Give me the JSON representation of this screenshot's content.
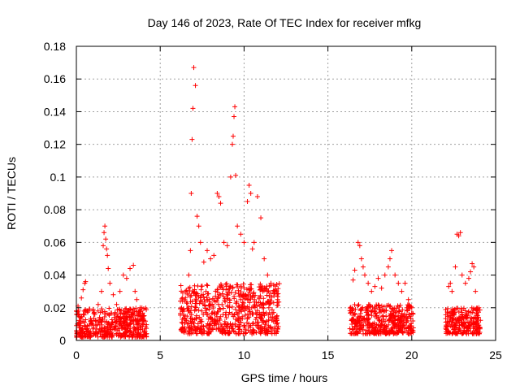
{
  "chart_data": {
    "type": "scatter",
    "title": "Day 146 of 2023, Rate Of TEC Index for receiver mfkg",
    "xlabel": "GPS time / hours",
    "ylabel": "ROTI / TECUs",
    "xlim": [
      0,
      25
    ],
    "ylim": [
      0,
      0.18
    ],
    "x_ticks": [
      0,
      5,
      10,
      15,
      20,
      25
    ],
    "x_tick_labels": [
      "0",
      "5",
      "10",
      "15",
      "20",
      "25"
    ],
    "y_ticks": [
      0,
      0.02,
      0.04,
      0.06,
      0.08,
      0.1,
      0.12,
      0.14,
      0.16,
      0.18
    ],
    "y_tick_labels": [
      "0",
      "0.02",
      "0.04",
      "0.06",
      "0.08",
      "0.1",
      "0.12",
      "0.14",
      "0.16",
      "0.18"
    ],
    "grid": true,
    "marker": "+",
    "color": "#ff0000",
    "series": [
      {
        "x": [
          0.1,
          0.3,
          0.4,
          0.5,
          0.55,
          0.7,
          0.9,
          1.1,
          1.3,
          1.5,
          1.6,
          1.65,
          1.7,
          1.75,
          1.8,
          1.85,
          1.9,
          2.0,
          2.2,
          2.4,
          2.6,
          2.8,
          3.0,
          3.2,
          3.4,
          3.5,
          3.6,
          3.8,
          4.0,
          6.5,
          6.7,
          6.8,
          6.85,
          6.9,
          6.95,
          7.0,
          7.1,
          7.2,
          7.3,
          7.4,
          7.6,
          7.8,
          8.0,
          8.2,
          8.4,
          8.5,
          8.6,
          8.8,
          9.0,
          9.2,
          9.3,
          9.35,
          9.4,
          9.45,
          9.5,
          9.6,
          9.8,
          10.0,
          10.2,
          10.3,
          10.4,
          10.5,
          10.6,
          10.8,
          11.0,
          11.2,
          11.4,
          11.6,
          11.8,
          12.0,
          16.5,
          16.6,
          16.8,
          16.9,
          17.0,
          17.1,
          17.2,
          17.4,
          17.6,
          17.8,
          18.0,
          18.2,
          18.4,
          18.6,
          18.7,
          18.8,
          19.0,
          19.2,
          19.4,
          19.6,
          19.8,
          20.0,
          22.2,
          22.3,
          22.4,
          22.6,
          22.7,
          22.8,
          22.9,
          23.0,
          23.2,
          23.4,
          23.5,
          23.6,
          23.7,
          23.8,
          24.0
        ],
        "y": [
          0.021,
          0.026,
          0.031,
          0.035,
          0.036,
          0.018,
          0.012,
          0.016,
          0.022,
          0.03,
          0.058,
          0.066,
          0.07,
          0.062,
          0.056,
          0.052,
          0.044,
          0.035,
          0.028,
          0.022,
          0.03,
          0.04,
          0.038,
          0.044,
          0.046,
          0.03,
          0.025,
          0.02,
          0.015,
          0.03,
          0.04,
          0.055,
          0.09,
          0.123,
          0.142,
          0.167,
          0.156,
          0.076,
          0.07,
          0.06,
          0.048,
          0.055,
          0.05,
          0.052,
          0.09,
          0.088,
          0.084,
          0.06,
          0.058,
          0.1,
          0.12,
          0.125,
          0.137,
          0.143,
          0.101,
          0.07,
          0.065,
          0.06,
          0.085,
          0.095,
          0.09,
          0.056,
          0.06,
          0.088,
          0.075,
          0.05,
          0.04,
          0.035,
          0.03,
          0.025,
          0.037,
          0.043,
          0.06,
          0.058,
          0.05,
          0.045,
          0.04,
          0.035,
          0.03,
          0.033,
          0.038,
          0.032,
          0.04,
          0.045,
          0.05,
          0.055,
          0.04,
          0.035,
          0.03,
          0.035,
          0.025,
          0.02,
          0.033,
          0.035,
          0.03,
          0.045,
          0.065,
          0.064,
          0.066,
          0.04,
          0.035,
          0.038,
          0.042,
          0.047,
          0.045,
          0.03,
          0.02
        ]
      }
    ],
    "dense_bands": [
      {
        "x_range": [
          0.0,
          4.2
        ],
        "y_range": [
          0.002,
          0.02
        ]
      },
      {
        "x_range": [
          6.2,
          12.1
        ],
        "y_range": [
          0.004,
          0.035
        ]
      },
      {
        "x_range": [
          16.3,
          20.1
        ],
        "y_range": [
          0.004,
          0.022
        ]
      },
      {
        "x_range": [
          22.0,
          24.1
        ],
        "y_range": [
          0.004,
          0.02
        ]
      }
    ]
  }
}
